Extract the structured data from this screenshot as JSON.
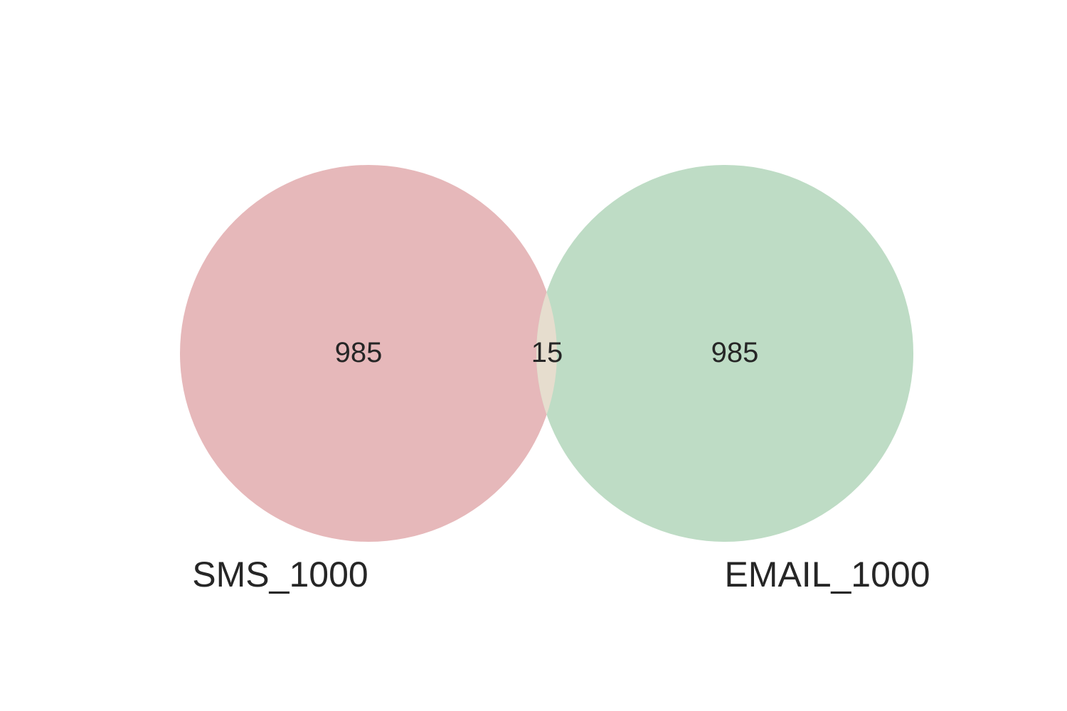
{
  "diagram": {
    "type": "venn2",
    "sets": [
      {
        "label": "SMS_1000",
        "color": "#E6B8BA"
      },
      {
        "label": "EMAIL_1000",
        "color": "#BEDCC5"
      }
    ],
    "intersection_color": "#E6DDCE",
    "regions": {
      "left_only": "985",
      "both": "15",
      "right_only": "985"
    },
    "text_color": "#262626"
  }
}
